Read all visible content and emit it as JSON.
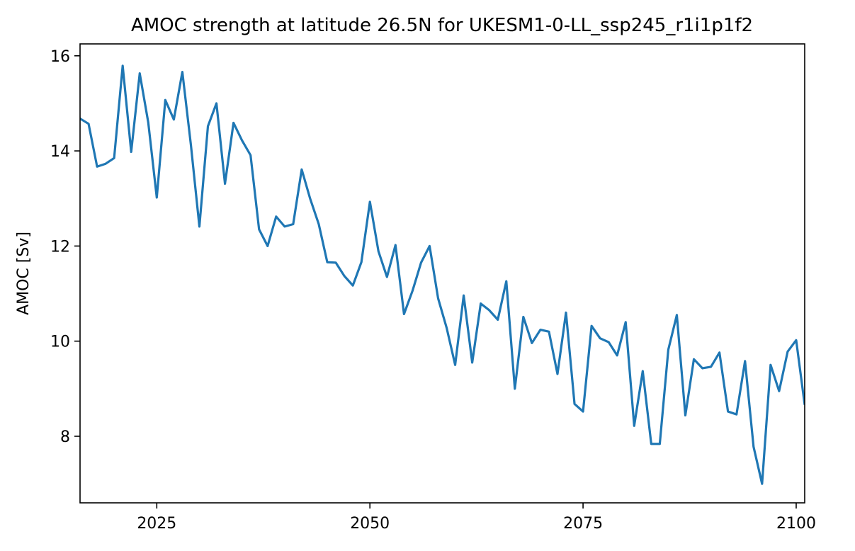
{
  "chart_data": {
    "type": "line",
    "title": "AMOC strength at latitude 26.5N for UKESM1-0-LL_ssp245_r1i1p1f2",
    "xlabel": "",
    "ylabel": "AMOC [Sv]",
    "xlim": [
      2016,
      2101
    ],
    "ylim": [
      6.6,
      16.25
    ],
    "xticks": [
      2025,
      2050,
      2075,
      2100
    ],
    "yticks": [
      8,
      10,
      12,
      14,
      16
    ],
    "grid": false,
    "line_color": "#1f77b4",
    "series": [
      {
        "x": [
          2015,
          2016,
          2017,
          2018,
          2019,
          2020,
          2021,
          2022,
          2023,
          2024,
          2025,
          2026,
          2027,
          2028,
          2029,
          2030,
          2031,
          2032,
          2033,
          2034,
          2035,
          2036,
          2037,
          2038,
          2039,
          2040,
          2041,
          2042,
          2043,
          2044,
          2045,
          2046,
          2047,
          2048,
          2049,
          2050,
          2051,
          2052,
          2053,
          2054,
          2055,
          2056,
          2057,
          2058,
          2059,
          2060,
          2061,
          2062,
          2063,
          2064,
          2065,
          2066,
          2067,
          2068,
          2069,
          2070,
          2071,
          2072,
          2073,
          2074,
          2075,
          2076,
          2077,
          2078,
          2079,
          2080,
          2081,
          2082,
          2083,
          2084,
          2085,
          2086,
          2087,
          2088,
          2089,
          2090,
          2091,
          2092,
          2093,
          2094,
          2095,
          2096,
          2097,
          2098,
          2099,
          2100,
          2101
        ],
        "values": [
          14.85,
          14.68,
          14.57,
          13.67,
          13.73,
          13.85,
          15.79,
          13.98,
          15.63,
          14.6,
          13.02,
          15.07,
          14.66,
          15.66,
          14.13,
          12.41,
          14.52,
          15,
          13.31,
          14.59,
          14.22,
          13.91,
          12.35,
          12,
          12.62,
          12.41,
          12.46,
          13.61,
          12.99,
          12.46,
          11.66,
          11.65,
          11.37,
          11.17,
          11.66,
          12.93,
          11.89,
          11.35,
          12.02,
          10.57,
          11.06,
          11.65,
          12,
          10.9,
          10.28,
          9.5,
          10.96,
          9.55,
          10.79,
          10.65,
          10.45,
          11.26,
          9,
          10.51,
          9.96,
          10.24,
          10.2,
          9.31,
          10.6,
          8.68,
          8.52,
          10.32,
          10.06,
          9.98,
          9.7,
          10.4,
          8.22,
          9.37,
          7.84,
          7.84,
          9.82,
          10.55,
          8.44,
          9.62,
          9.43,
          9.46,
          9.76,
          8.52,
          8.46,
          9.58,
          7.78,
          7,
          9.5,
          8.95,
          9.78,
          10.02,
          8.66
        ]
      }
    ]
  }
}
